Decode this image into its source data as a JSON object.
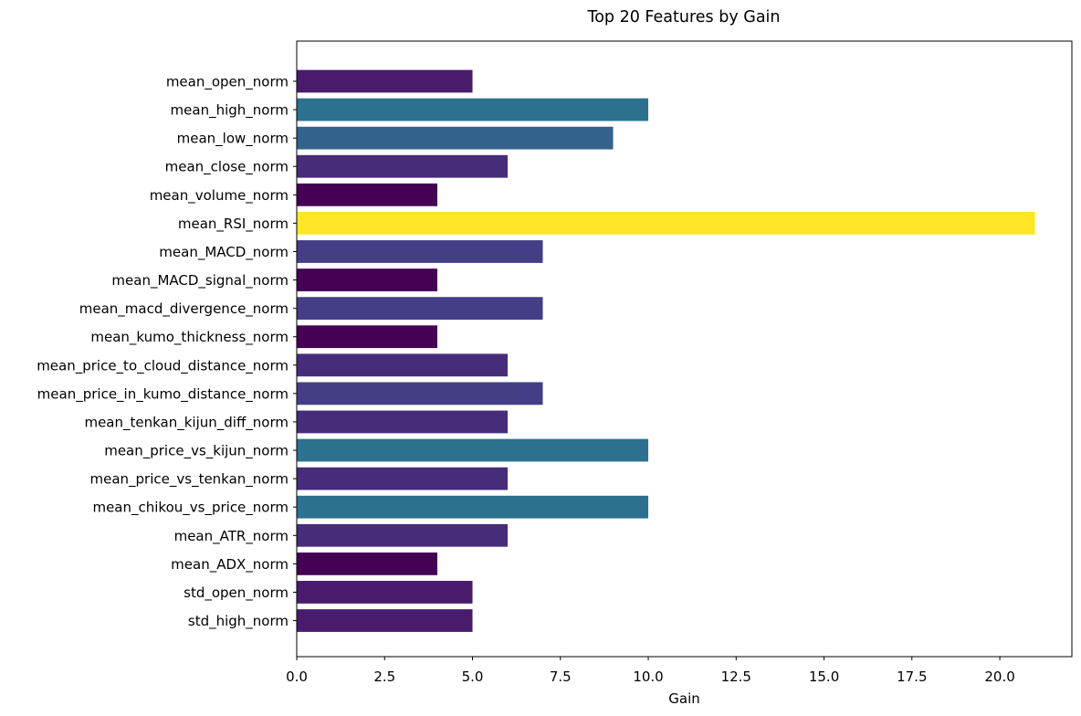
{
  "chart_data": {
    "type": "bar",
    "orientation": "horizontal",
    "title": "Top 20 Features by Gain",
    "xlabel": "Gain",
    "ylabel": "",
    "xlim": [
      0,
      22.05
    ],
    "xticks": [
      0,
      2.5,
      5,
      7.5,
      10,
      12.5,
      15,
      17.5,
      20
    ],
    "xtick_labels": [
      "0.0",
      "2.5",
      "5.0",
      "7.5",
      "10.0",
      "12.5",
      "15.0",
      "17.5",
      "20.0"
    ],
    "grid": false,
    "legend": "none",
    "colormap": "viridis",
    "categories": [
      "mean_open_norm",
      "mean_high_norm",
      "mean_low_norm",
      "mean_close_norm",
      "mean_volume_norm",
      "mean_RSI_norm",
      "mean_MACD_norm",
      "mean_MACD_signal_norm",
      "mean_macd_divergence_norm",
      "mean_kumo_thickness_norm",
      "mean_price_to_cloud_distance_norm",
      "mean_price_in_kumo_distance_norm",
      "mean_tenkan_kijun_diff_norm",
      "mean_price_vs_kijun_norm",
      "mean_price_vs_tenkan_norm",
      "mean_chikou_vs_price_norm",
      "mean_ATR_norm",
      "mean_ADX_norm",
      "std_open_norm",
      "std_high_norm"
    ],
    "values": [
      5,
      10,
      9,
      6,
      4,
      21,
      7,
      4,
      7,
      4,
      6,
      7,
      6,
      10,
      6,
      10,
      6,
      4,
      5,
      5
    ],
    "colors": [
      "#481b6d",
      "#2c718e",
      "#33638d",
      "#472c7a",
      "#440154",
      "#fde725",
      "#433e85",
      "#440154",
      "#433e85",
      "#440154",
      "#472c7a",
      "#433e85",
      "#472c7a",
      "#2c718e",
      "#472c7a",
      "#2c718e",
      "#472c7a",
      "#440154",
      "#481b6d",
      "#481b6d"
    ]
  }
}
